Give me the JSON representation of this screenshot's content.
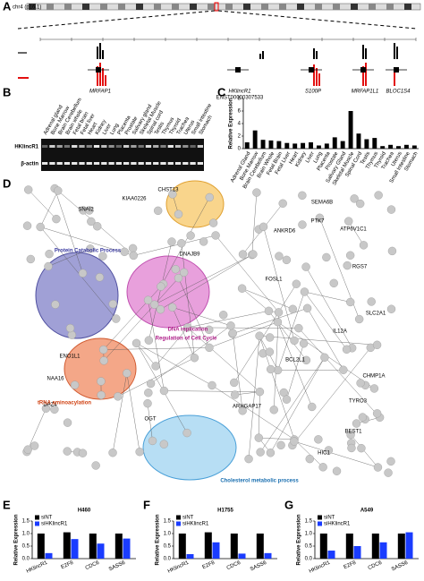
{
  "panel_labels": [
    "A",
    "B",
    "C",
    "D",
    "E",
    "F",
    "G"
  ],
  "genome": {
    "chrom": "chr4 (p16.1)",
    "genes": [
      "MRFAP1",
      "HKlincR1",
      "S100P",
      "MRFAP1L1",
      "BLOC1S4"
    ],
    "accession": "ENST00000307533"
  },
  "gel": {
    "rows": [
      "HKlincR1",
      "β-actin"
    ],
    "lanes": [
      "Adrenal gland",
      "Bone Marrow",
      "Brain Cerebellum",
      "Brain whole",
      "Fetal brain",
      "Fetal liver",
      "Heart",
      "Kidney",
      "Liver",
      "Lung",
      "Placenta",
      "Prostate",
      "Salivary gland",
      "Skeletal Muscle",
      "Spinal cord",
      "Testis",
      "Thymus",
      "Thyroid",
      "Trachea",
      "Uterus",
      "Small intestine",
      "Stomach"
    ]
  },
  "network": {
    "clusters": [
      "Protein Catabolic Process",
      "DNA replication",
      "Regulation of Cell Cycle",
      "tRNA aminoacylation",
      "Cholesterol metabolic process"
    ],
    "nodes": [
      "CHST13",
      "KIAA0226",
      "DNAJB9",
      "SEMA6B",
      "PTK7",
      "ATP6V1C1",
      "NAA16",
      "OGT",
      "HIC1",
      "BEST1",
      "ENO1L1",
      "DAZ4",
      "SLC2A1",
      "IL12A",
      "FOSL1",
      "ANKRD6",
      "RGS7",
      "CHMP1A",
      "TYRO3",
      "BCL2L1",
      "SNAI2",
      "ARHGAP17"
    ]
  },
  "chart_data": [
    {
      "type": "bar",
      "ylabel": "Relative Expression",
      "categories": [
        "Adrenal Gland",
        "Bone Marrow",
        "Brain Cerebellum",
        "Brain Whole",
        "Fetal Brain",
        "Fetal Liver",
        "Heart",
        "Kidney",
        "Liver",
        "Lung",
        "Placenta",
        "Prostate",
        "Salivary Gland",
        "Skeletal Muscle",
        "Spinal Cord",
        "Testis",
        "Thymus",
        "Thyroid",
        "Trachea",
        "Uterus",
        "Small Intestine",
        "Stomach"
      ],
      "series": [
        {
          "color": "#000000",
          "values": [
            1,
            2.9,
            1.4,
            1.3,
            1.2,
            0.9,
            0.8,
            0.9,
            1,
            0.5,
            0.8,
            1.8,
            1.2,
            6,
            2.4,
            1.5,
            1.7,
            0.4,
            0.6,
            0.4,
            0.6,
            0.5
          ]
        }
      ],
      "ylim": [
        0,
        8
      ],
      "yticks": [
        0,
        2,
        4,
        6,
        8
      ]
    },
    {
      "type": "bar",
      "title": "H460",
      "ylabel": "Relative Expression",
      "categories": [
        "HKlincR1",
        "E2F8",
        "CDC6",
        "SASS6"
      ],
      "series": [
        {
          "name": "siNT",
          "color": "#000000",
          "values": [
            1.0,
            1.05,
            1.0,
            1.0
          ]
        },
        {
          "name": "siHKlincR1",
          "color": "#1a3cff",
          "values": [
            0.22,
            0.78,
            0.6,
            0.8
          ]
        }
      ],
      "ylim": [
        0,
        1.5
      ],
      "yticks": [
        {
          "value": 0,
          "label": "0.0"
        },
        {
          "value": 0.5,
          "label": "0.5"
        },
        {
          "value": 1,
          "label": "1.0"
        },
        {
          "value": 1.5,
          "label": "1.5"
        }
      ]
    },
    {
      "type": "bar",
      "title": "H1755",
      "ylabel": "Relative Expression",
      "categories": [
        "HKlincR1",
        "E2F8",
        "CDC6",
        "SASS6"
      ],
      "series": [
        {
          "name": "siNT",
          "color": "#000000",
          "values": [
            1.0,
            1.05,
            1.0,
            1.0
          ]
        },
        {
          "name": "siHKlincR1",
          "color": "#1a3cff",
          "values": [
            0.18,
            0.65,
            0.2,
            0.22
          ]
        }
      ],
      "ylim": [
        0,
        1.5
      ],
      "yticks": [
        {
          "value": 0,
          "label": "0.0"
        },
        {
          "value": 0.5,
          "label": "0.5"
        },
        {
          "value": 1,
          "label": "1.0"
        },
        {
          "value": 1.5,
          "label": "1.5"
        }
      ]
    },
    {
      "type": "bar",
      "title": "A549",
      "ylabel": "Relative Expression",
      "categories": [
        "HKlincR1",
        "E2F8",
        "CDC6",
        "SASS6"
      ],
      "series": [
        {
          "name": "siNT",
          "color": "#000000",
          "values": [
            1.0,
            1.0,
            1.0,
            1.0
          ]
        },
        {
          "name": "siHKlincR1",
          "color": "#1a3cff",
          "values": [
            0.32,
            0.5,
            0.65,
            1.05
          ]
        }
      ],
      "ylim": [
        0,
        1.5
      ],
      "yticks": [
        {
          "value": 0,
          "label": "0.0"
        },
        {
          "value": 0.5,
          "label": "0.5"
        },
        {
          "value": 1,
          "label": "1.0"
        },
        {
          "value": 1.5,
          "label": "1.5"
        }
      ]
    }
  ]
}
